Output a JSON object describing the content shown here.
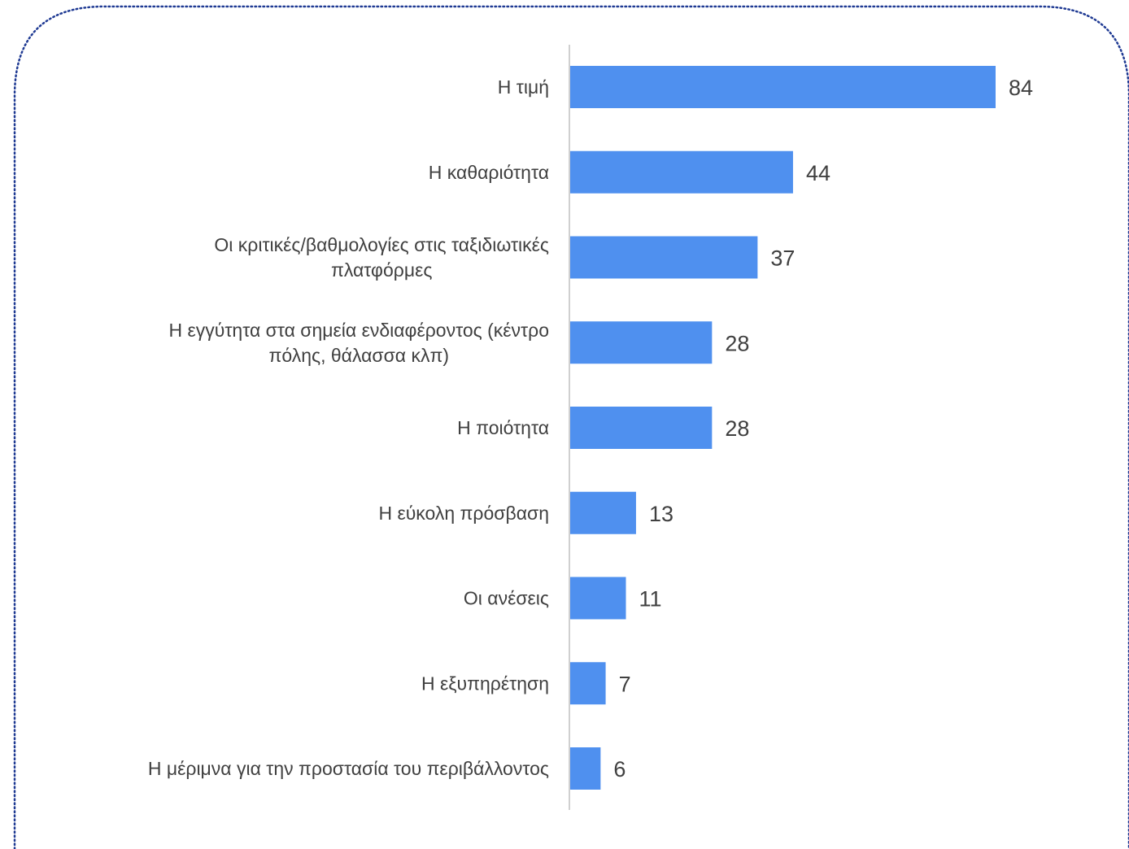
{
  "chart_data": {
    "type": "bar",
    "orientation": "horizontal",
    "categories": [
      "Η τιμή",
      "Η καθαριότητα",
      "Οι κριτικές/βαθμολογίες στις ταξιδιωτικές πλατφόρμες",
      "Η εγγύτητα στα σημεία ενδιαφέροντος (κέντρο πόλης, θάλασσα κλπ)",
      "Η ποιότητα",
      "Η εύκολη πρόσβαση",
      "Οι ανέσεις",
      "Η εξυπηρέτηση",
      "Η μέριμνα για την προστασία του περιβάλλοντος"
    ],
    "category_lines": [
      [
        "Η τιμή"
      ],
      [
        "Η καθαριότητα"
      ],
      [
        "Οι κριτικές/βαθμολογίες στις ταξιδιωτικές",
        "πλατφόρμες"
      ],
      [
        "Η εγγύτητα στα σημεία ενδιαφέροντος (κέντρο",
        "πόλης, θάλασσα κλπ)"
      ],
      [
        "Η ποιότητα"
      ],
      [
        "Η εύκολη πρόσβαση"
      ],
      [
        "Οι ανέσεις"
      ],
      [
        "Η εξυπηρέτηση"
      ],
      [
        "Η μέριμνα για την προστασία του περιβάλλοντος"
      ]
    ],
    "values": [
      84,
      44,
      37,
      28,
      28,
      13,
      11,
      7,
      6
    ],
    "value_labels": [
      "84",
      "44",
      "37",
      "28",
      "28",
      "13",
      "11",
      "7",
      "6"
    ],
    "xlim": [
      0,
      90
    ],
    "grid": false,
    "legend": "none",
    "title": "",
    "xlabel": "",
    "ylabel": ""
  },
  "colors": {
    "bar": "#4f90ef",
    "axis": "#d0d0d0",
    "text": "#404040",
    "frame_border": "#1f3a93",
    "background": "#ffffff"
  }
}
